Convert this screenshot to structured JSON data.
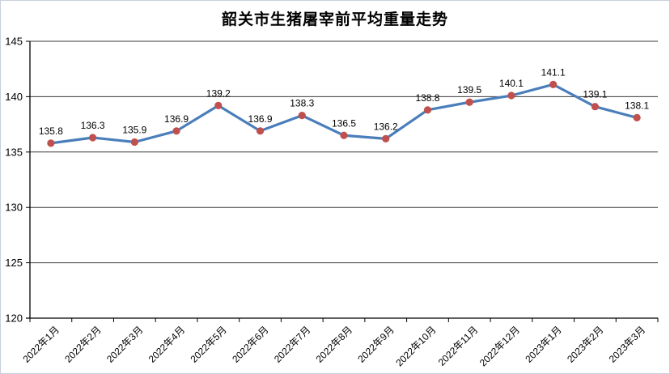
{
  "chart": {
    "title": "韶关市生猪屠宰前平均重量走势"
  },
  "chart_data": {
    "type": "line",
    "title": "韶关市生猪屠宰前平均重量走势",
    "categories": [
      "2022年1月",
      "2022年2月",
      "2022年3月",
      "2022年4月",
      "2022年5月",
      "2022年6月",
      "2022年7月",
      "2022年8月",
      "2022年9月",
      "2022年10月",
      "2022年11月",
      "2022年12月",
      "2023年1月",
      "2023年2月",
      "2023年3月"
    ],
    "values": [
      135.8,
      136.3,
      135.9,
      136.9,
      139.2,
      136.9,
      138.3,
      136.5,
      136.2,
      138.8,
      139.5,
      140.1,
      141.1,
      139.1,
      138.1
    ],
    "value_labels": [
      "135.8",
      "136.3",
      "135.9",
      "136.9",
      "139.2",
      "136.9",
      "138.3",
      "136.5",
      "136.2",
      "138.8",
      "139.5",
      "140.1",
      "141.1",
      "139.1",
      "138.1"
    ],
    "xlabel": "",
    "ylabel": "",
    "ylim": [
      120,
      145
    ],
    "yticks": [
      120,
      125,
      130,
      135,
      140,
      145
    ],
    "ytick_labels": [
      "120",
      "125",
      "130",
      "135",
      "140",
      "145"
    ],
    "grid": true,
    "legend_position": "none",
    "line_color": "#4A7EBB",
    "marker_color": "#C0504D",
    "grid_color": "#3a3a3a",
    "axis_color": "#000000",
    "label_color": "#000000",
    "background_color": "#FFFFFF",
    "border_color": "#C9CFDC"
  }
}
